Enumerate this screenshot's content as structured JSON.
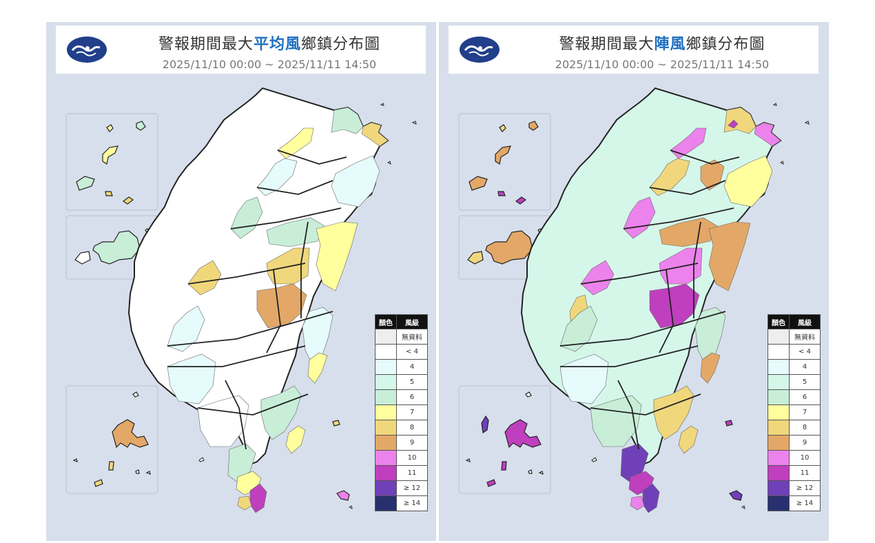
{
  "panels": [
    {
      "title_prefix": "警報期間最大",
      "title_highlight": "平均風",
      "title_suffix": "鄉鎮分布圖",
      "period": "2025/11/10 00:00 ~ 2025/11/11 14:50"
    },
    {
      "title_prefix": "警報期間最大",
      "title_highlight": "陣風",
      "title_suffix": "鄉鎮分布圖",
      "period": "2025/11/10 00:00 ~ 2025/11/11 14:50"
    }
  ],
  "legend": {
    "header_color": "顏色",
    "header_level": "風級",
    "items": [
      {
        "label": "無資料",
        "color": "#eeeeee"
      },
      {
        "label": "< 4",
        "color": "#ffffff"
      },
      {
        "label": "4",
        "color": "#e6fbfb"
      },
      {
        "label": "5",
        "color": "#d5f7ea"
      },
      {
        "label": "6",
        "color": "#c8eed8"
      },
      {
        "label": "7",
        "color": "#ffff9e"
      },
      {
        "label": "8",
        "color": "#f0d77c"
      },
      {
        "label": "9",
        "color": "#e3a867"
      },
      {
        "label": "10",
        "color": "#ec82ec"
      },
      {
        "label": "11",
        "color": "#bf3fbf"
      },
      {
        "label": "≥ 12",
        "color": "#7040b8"
      },
      {
        "label": "≥ 14",
        "color": "#283070"
      }
    ]
  },
  "icons": [
    "cwa-logo-icon"
  ]
}
